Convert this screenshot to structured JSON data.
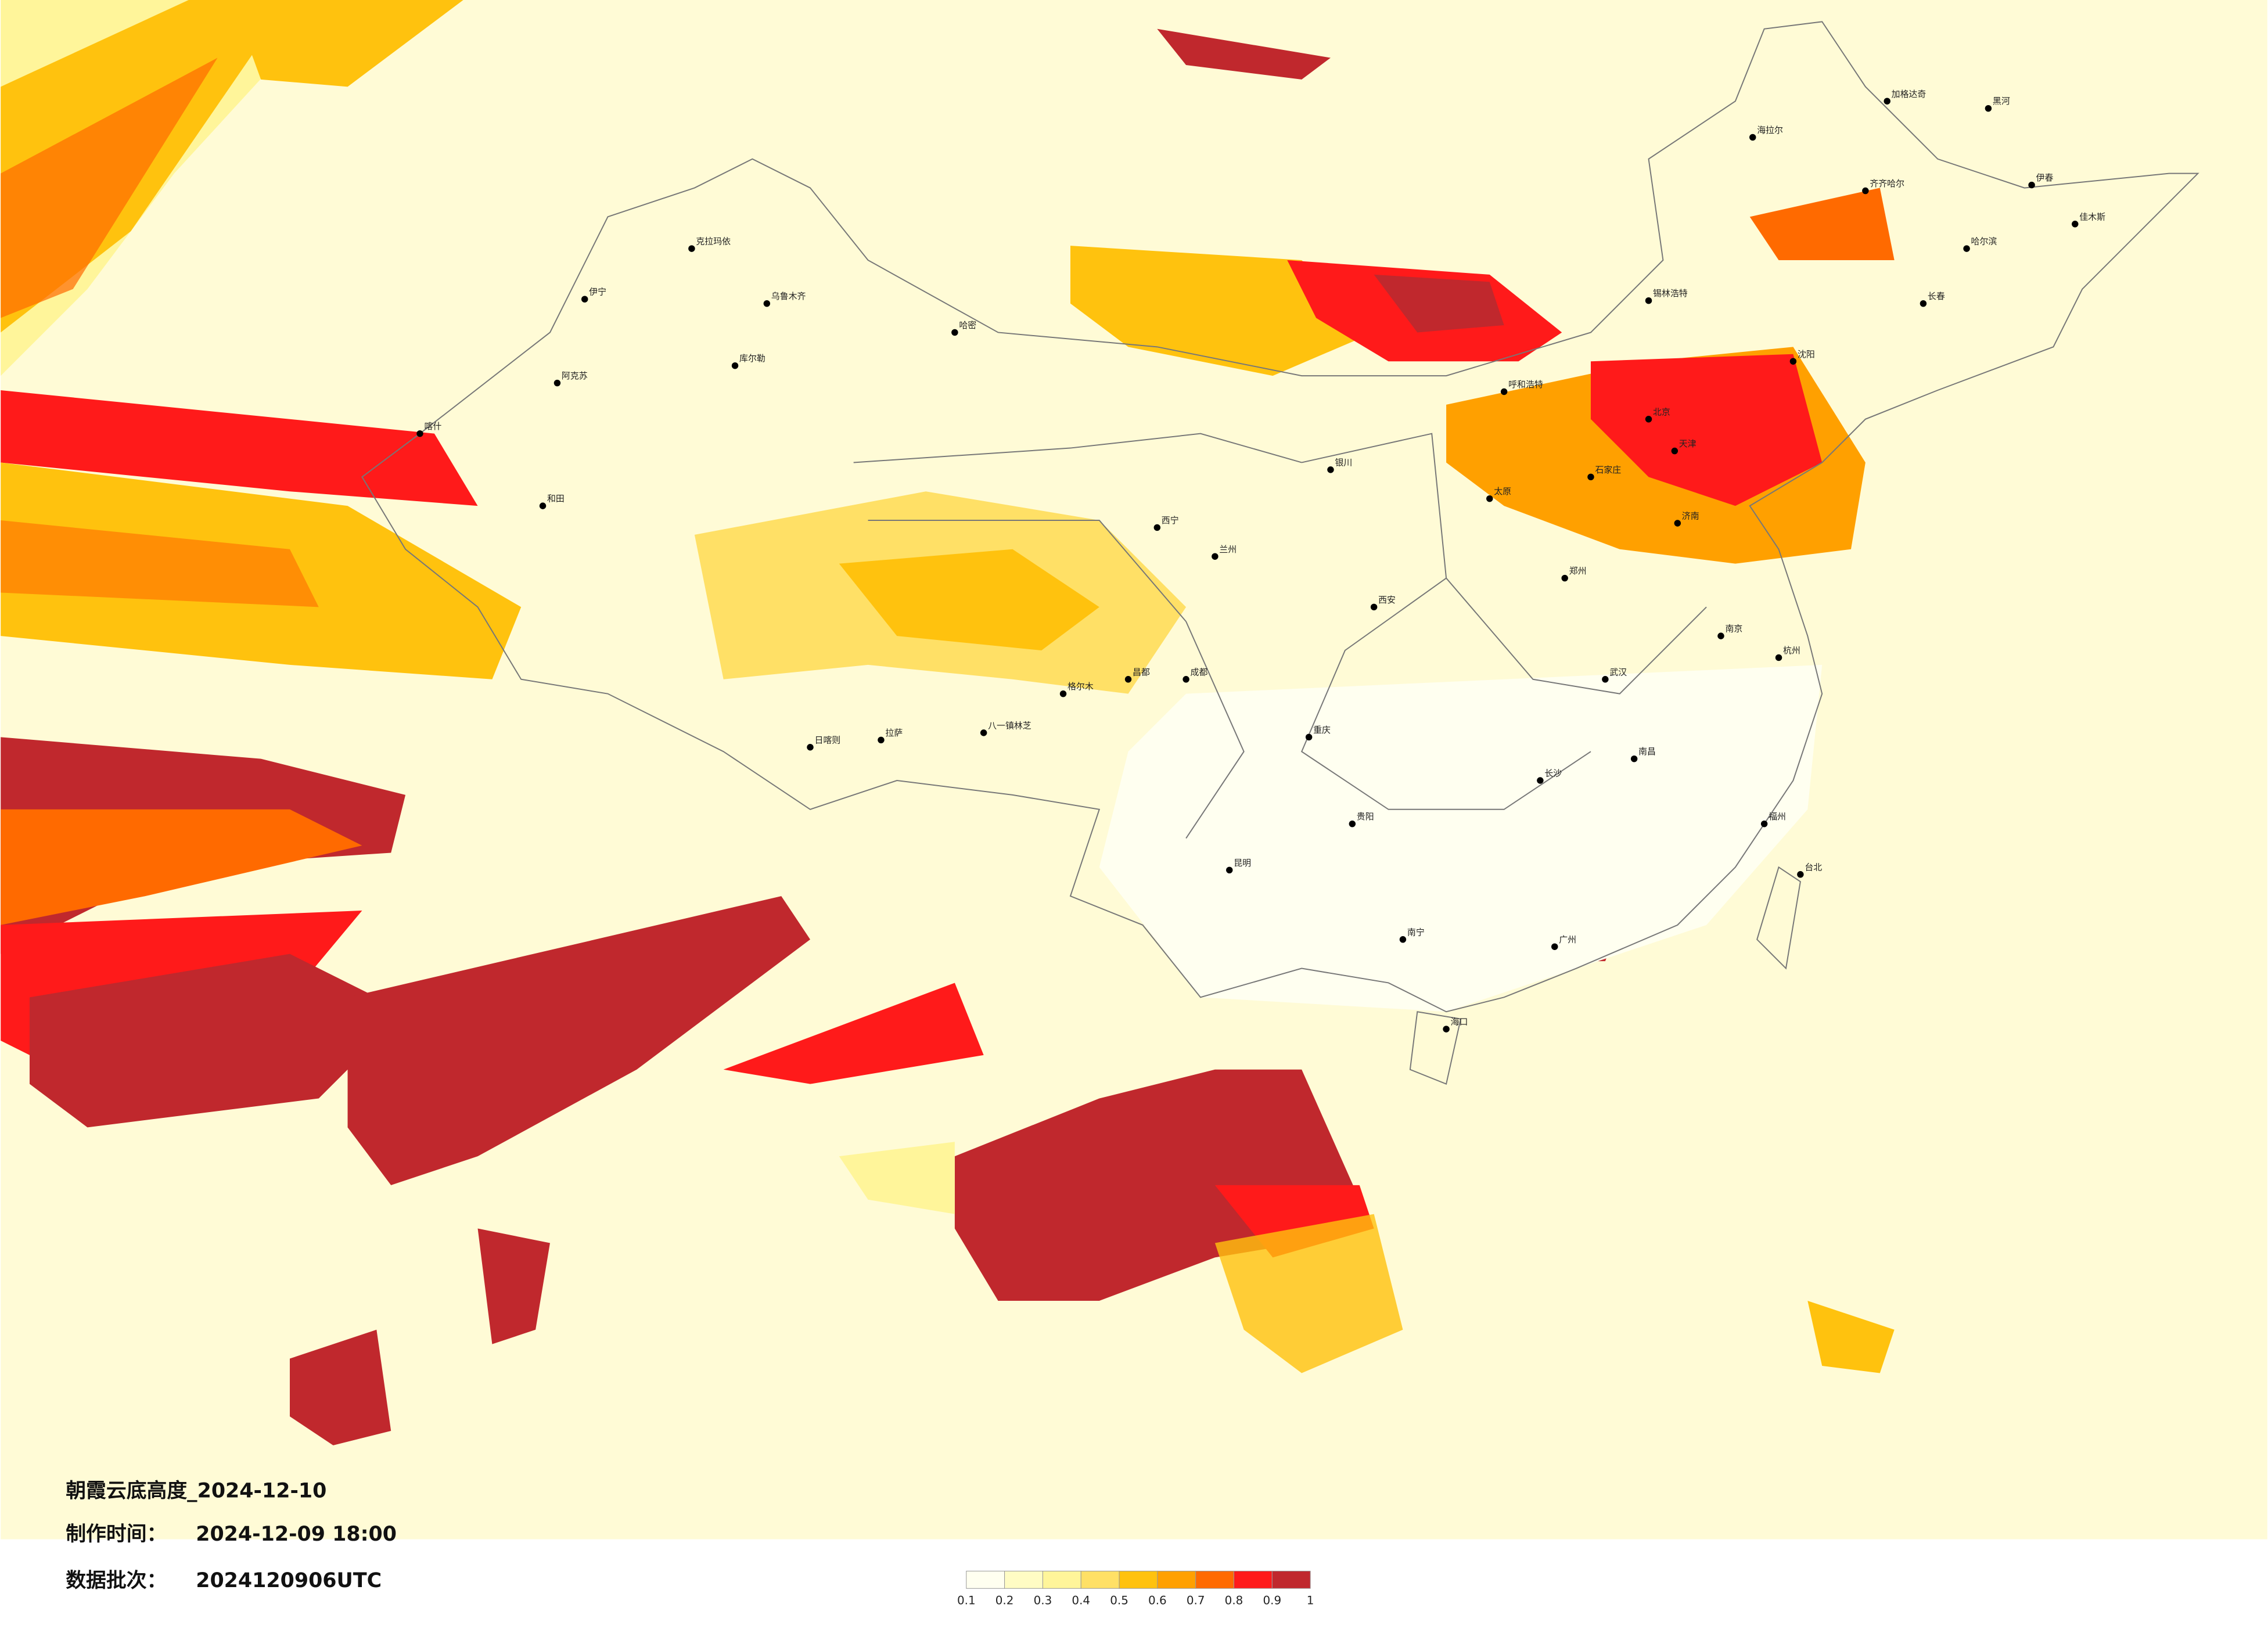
{
  "title": "朝霞云底高度_2024-12-10",
  "made_time": {
    "label": "制作时间：",
    "value": "2024-12-09 18:00"
  },
  "data_batch": {
    "label": "数据批次：",
    "value": "2024120906UTC"
  },
  "legend": {
    "colors": [
      "#fffff0",
      "#fffcc4",
      "#fff59a",
      "#ffe066",
      "#ffc20e",
      "#ffa000",
      "#ff6a00",
      "#ff1a1a",
      "#c0282d"
    ],
    "ticks": [
      "0.1",
      "0.2",
      "0.3",
      "0.4",
      "0.5",
      "0.6",
      "0.7",
      "0.8",
      "0.9",
      "1"
    ]
  },
  "cities": [
    "乌鲁木齐",
    "克拉玛依",
    "伊宁",
    "阿克苏",
    "喀什",
    "和田",
    "库尔勒",
    "哈密",
    "拉萨",
    "日喀则",
    "八一镇林芝",
    "西宁",
    "兰州",
    "银川",
    "呼和浩特",
    "北京",
    "天津",
    "石家庄",
    "太原",
    "济南",
    "郑州",
    "西安",
    "成都",
    "重庆",
    "贵阳",
    "昆明",
    "南宁",
    "广州",
    "长沙",
    "武汉",
    "南昌",
    "杭州",
    "南京",
    "福州",
    "台北",
    "海口",
    "沈阳",
    "长春",
    "哈尔滨",
    "齐齐哈尔",
    "加格达奇",
    "黑河",
    "海拉尔",
    "伊春",
    "佳木斯",
    "锡林浩特",
    "格尔木",
    "昌都"
  ]
}
